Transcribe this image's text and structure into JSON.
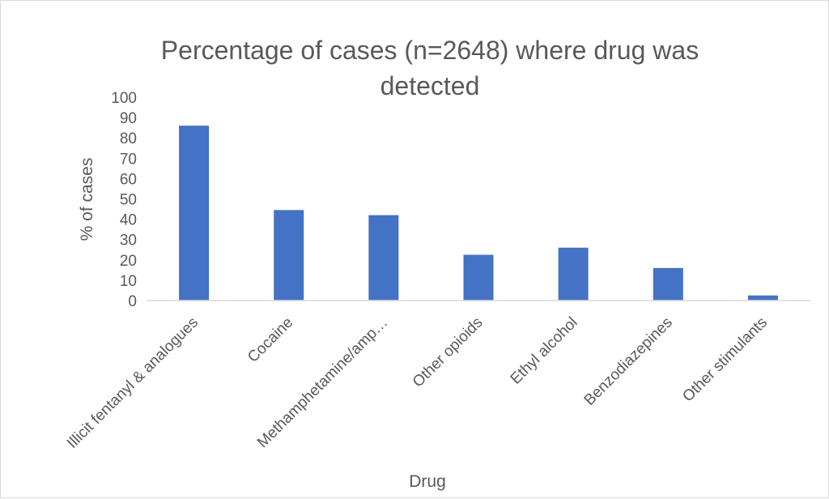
{
  "chart_data": {
    "type": "bar",
    "title_lines": [
      "Percentage of cases (n=2648) where drug was",
      "detected"
    ],
    "xlabel": "Drug",
    "ylabel": "% of cases",
    "categories": [
      "Illicit fentanyl & analogues",
      "Cocaine",
      "Methamphetamine/amp…",
      "Other opioids",
      "Ethyl alcohol",
      "Benzodiazepines",
      "Other stimulants"
    ],
    "values": [
      86,
      44.5,
      42,
      22.5,
      26,
      16,
      2.5
    ],
    "ylim": [
      0,
      100
    ],
    "yticks": [
      "0",
      "10",
      "20",
      "30",
      "40",
      "50",
      "60",
      "70",
      "80",
      "90",
      "100"
    ],
    "grid": false,
    "legend": "none",
    "bar_color": "#4472c4",
    "axis_color": "#d9d9d9"
  }
}
